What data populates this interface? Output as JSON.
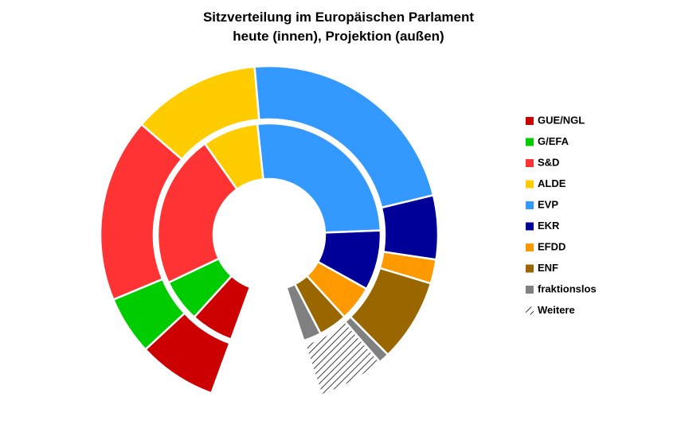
{
  "chart_data": {
    "type": "nested-donut",
    "title": "Sitzverteilung im Europäischen Parlament",
    "subtitle": "heute (innen), Projektion (außen)",
    "categories": [
      "GUE/NGL",
      "G/EFA",
      "S&D",
      "ALDE",
      "EVP",
      "EKR",
      "EFDD",
      "ENF",
      "fraktionslos",
      "Weitere"
    ],
    "colors": [
      "#cc0000",
      "#00cc00",
      "#ff3333",
      "#ffcc00",
      "#3399ff",
      "#000099",
      "#ff9900",
      "#996600",
      "#808080",
      "hatch"
    ],
    "series": [
      {
        "values": [
          52,
          52,
          187,
          68,
          219,
          73,
          43,
          35,
          22,
          null
        ]
      },
      {
        "values": [
          59,
          44,
          138,
          96,
          177,
          48,
          18,
          62,
          8,
          50
        ]
      }
    ]
  }
}
